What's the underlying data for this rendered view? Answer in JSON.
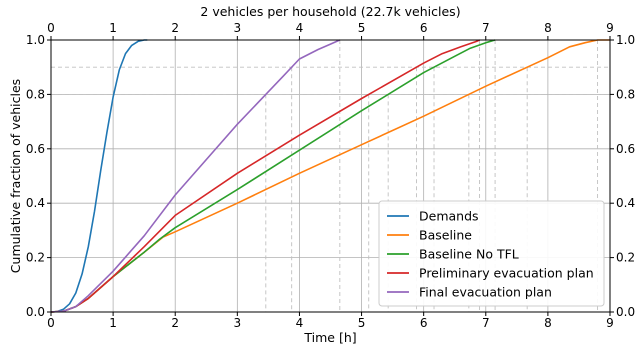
{
  "chart_data": {
    "type": "line",
    "title": "2 vehicles per household (22.7k vehicles)",
    "xlabel": "Time [h]",
    "ylabel": "Cumulative fraction of vehicles",
    "xlim": [
      0,
      9
    ],
    "ylim": [
      0,
      1.0
    ],
    "xticks": [
      0,
      1,
      2,
      3,
      4,
      5,
      6,
      7,
      8,
      9
    ],
    "yticks": [
      "0.0",
      "0.2",
      "0.4",
      "0.6",
      "0.8",
      "1.0"
    ],
    "grid": true,
    "top_axis_ticks": true,
    "right_axis_ticks": true,
    "legend_position": "lower right",
    "reference_lines_y": [
      0.8,
      0.9,
      1.0
    ],
    "series": [
      {
        "name": "Demands",
        "color": "#1f77b4",
        "points": [
          [
            0,
            0
          ],
          [
            0.1,
            0.002
          ],
          [
            0.2,
            0.01
          ],
          [
            0.3,
            0.03
          ],
          [
            0.4,
            0.07
          ],
          [
            0.5,
            0.14
          ],
          [
            0.6,
            0.24
          ],
          [
            0.7,
            0.37
          ],
          [
            0.8,
            0.52
          ],
          [
            0.9,
            0.66
          ],
          [
            1.0,
            0.79
          ],
          [
            1.1,
            0.89
          ],
          [
            1.2,
            0.95
          ],
          [
            1.3,
            0.98
          ],
          [
            1.4,
            0.995
          ],
          [
            1.5,
            1.0
          ],
          [
            1.55,
            1.0
          ]
        ]
      },
      {
        "name": "Baseline",
        "color": "#ff7f0e",
        "points": [
          [
            0,
            0
          ],
          [
            0.2,
            0.003
          ],
          [
            0.4,
            0.02
          ],
          [
            0.6,
            0.05
          ],
          [
            1.0,
            0.13
          ],
          [
            1.5,
            0.22
          ],
          [
            1.8,
            0.275
          ],
          [
            2.0,
            0.295
          ],
          [
            3.0,
            0.4
          ],
          [
            4.0,
            0.51
          ],
          [
            5.0,
            0.615
          ],
          [
            6.0,
            0.72
          ],
          [
            7.0,
            0.83
          ],
          [
            8.0,
            0.935
          ],
          [
            8.35,
            0.975
          ],
          [
            8.6,
            0.99
          ],
          [
            8.8,
            1.0
          ],
          [
            9.0,
            1.0
          ]
        ]
      },
      {
        "name": "Baseline No TFL",
        "color": "#2ca02c",
        "points": [
          [
            0,
            0
          ],
          [
            0.2,
            0.003
          ],
          [
            0.4,
            0.02
          ],
          [
            0.6,
            0.05
          ],
          [
            1.0,
            0.13
          ],
          [
            1.5,
            0.22
          ],
          [
            1.75,
            0.268
          ],
          [
            2.0,
            0.31
          ],
          [
            3.0,
            0.45
          ],
          [
            4.0,
            0.595
          ],
          [
            5.0,
            0.74
          ],
          [
            6.0,
            0.88
          ],
          [
            6.5,
            0.94
          ],
          [
            6.75,
            0.97
          ],
          [
            7.0,
            0.99
          ],
          [
            7.15,
            1.0
          ]
        ]
      },
      {
        "name": "Preliminary evacuation plan",
        "color": "#d62728",
        "points": [
          [
            0,
            0
          ],
          [
            0.2,
            0.003
          ],
          [
            0.4,
            0.02
          ],
          [
            0.6,
            0.05
          ],
          [
            1.0,
            0.13
          ],
          [
            1.5,
            0.24
          ],
          [
            2.0,
            0.355
          ],
          [
            3.0,
            0.51
          ],
          [
            4.0,
            0.65
          ],
          [
            5.0,
            0.785
          ],
          [
            6.0,
            0.915
          ],
          [
            6.3,
            0.95
          ],
          [
            6.6,
            0.975
          ],
          [
            6.85,
            0.995
          ],
          [
            6.9,
            1.0
          ]
        ]
      },
      {
        "name": "Final evacuation plan",
        "color": "#9467bd",
        "points": [
          [
            0,
            0
          ],
          [
            0.2,
            0.003
          ],
          [
            0.4,
            0.02
          ],
          [
            0.6,
            0.06
          ],
          [
            1.0,
            0.15
          ],
          [
            1.5,
            0.28
          ],
          [
            2.0,
            0.43
          ],
          [
            3.0,
            0.69
          ],
          [
            3.5,
            0.81
          ],
          [
            3.75,
            0.87
          ],
          [
            4.0,
            0.93
          ],
          [
            4.3,
            0.965
          ],
          [
            4.5,
            0.985
          ],
          [
            4.6,
            0.995
          ],
          [
            4.65,
            1.0
          ]
        ]
      }
    ]
  }
}
